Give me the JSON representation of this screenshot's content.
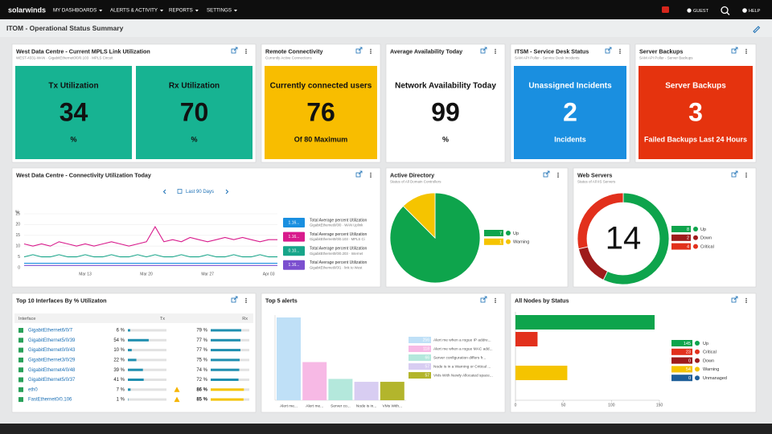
{
  "nav": {
    "logo": "solarwinds",
    "menus": [
      "MY DASHBOARDS",
      "ALERTS & ACTIVITY",
      "REPORTS",
      "SETTINGS"
    ],
    "user": "GUEST",
    "help": "HELP"
  },
  "page_title": "ITOM - Operational Status Summary",
  "stat_widgets": [
    {
      "title": "West Data Centre - Current MPLS Link Utilization",
      "subtitle": "WEST-4331-WAN · GigabitEthernet0/0/0.103 · MPLS Circuit",
      "tiles": [
        {
          "label": "Tx Utilization",
          "value": 34,
          "footer": "%",
          "color": "#17b392",
          "text_color": "#111111"
        },
        {
          "label": "Rx Utilization",
          "value": 70,
          "footer": "%",
          "color": "#17b392",
          "text_color": "#111111"
        }
      ]
    },
    {
      "title": "Remote Connectivity",
      "subtitle": "Currently Active Connections",
      "tiles": [
        {
          "label": "Currently connected users",
          "value": 76,
          "footer": "Of 80 Maximum",
          "color": "#f8bd00",
          "text_color": "#111111"
        }
      ]
    },
    {
      "title": "Average Availability Today",
      "tiles": [
        {
          "label": "Network Availability Today",
          "value": 99,
          "footer": "%",
          "color": "#ffffff",
          "text_color": "#111111"
        }
      ]
    },
    {
      "title": "ITSM - Service Desk Status",
      "subtitle": "SAM API Poller - Service Desk Incidents",
      "tiles": [
        {
          "label": "Unassigned Incidents",
          "value": 2,
          "footer": "Incidents",
          "color": "#1a8fe0",
          "text_color": "#ffffff"
        }
      ]
    },
    {
      "title": "Server Backups",
      "subtitle": "SAM API Poller - Server Backups",
      "tiles": [
        {
          "label": "Server Backups",
          "value": 3,
          "footer": "Failed Backups Last 24 Hours",
          "color": "#e5330e",
          "text_color": "#ffffff"
        }
      ]
    }
  ],
  "utilization_chart": {
    "type": "line",
    "title": "West Data Centre - Connectivity Utilization Today",
    "range_label": "Last 90 Days",
    "y_label": "%",
    "categories": [
      null,
      null,
      null,
      null,
      null,
      null,
      null,
      "Mar 13",
      null,
      null,
      null,
      null,
      null,
      null,
      "Mar 20",
      null,
      null,
      null,
      null,
      null,
      null,
      "Mar 27",
      null,
      null,
      null,
      null,
      null,
      null,
      "Apr 03",
      null
    ],
    "ylim": [
      0,
      25
    ],
    "yticks": [
      0,
      5,
      10,
      15,
      20,
      25
    ],
    "grid": true,
    "series": [
      {
        "name": "Total Average percent Utilization",
        "detail": "GigabitEthernet0/0/0 · WAN Uplink",
        "badge": "1.16...",
        "color": "#1a8fe0",
        "values": [
          2,
          2,
          2,
          2,
          2,
          2,
          2,
          2,
          2,
          2,
          2,
          2,
          2,
          2,
          2,
          2,
          2,
          2,
          2,
          2,
          2,
          2,
          2,
          2,
          2,
          2,
          2,
          2,
          2,
          2
        ]
      },
      {
        "name": "Total Average percent Utilization",
        "detail": "GigabitEthernet0/0/0.103 · MPLS Ci",
        "badge": "1.16...",
        "color": "#d81b8c",
        "values": [
          11,
          10,
          11,
          10,
          12,
          11,
          10,
          11,
          10,
          11,
          12,
          11,
          10,
          11,
          12,
          19,
          12,
          13,
          12,
          14,
          13,
          12,
          13,
          14,
          13,
          14,
          13,
          12,
          13,
          13
        ]
      },
      {
        "name": "Total Average percent Utilization",
        "detail": "GigabitEthernet0/0/0.203 · Internet",
        "badge": "0.10...",
        "color": "#17a589",
        "values": [
          5,
          6,
          5,
          5,
          6,
          5,
          5,
          6,
          5,
          5,
          6,
          5,
          5,
          6,
          5,
          6,
          5,
          5,
          6,
          5,
          5,
          6,
          5,
          5,
          6,
          5,
          5,
          6,
          5,
          5
        ]
      },
      {
        "name": "Total Average percent Utilization",
        "detail": "GigabitEthernet0/0/1 · link to West",
        "badge": "1.16...",
        "color": "#7b4fcf",
        "values": [
          1,
          1,
          1,
          1,
          1,
          1,
          1,
          1,
          1,
          1,
          1,
          1,
          1,
          1,
          1,
          1,
          1,
          1,
          1,
          1,
          1,
          1,
          1,
          1,
          1,
          1,
          1,
          1,
          1,
          1
        ]
      }
    ]
  },
  "active_directory": {
    "type": "pie",
    "title": "Active Directory",
    "subtitle": "Status of All Domain Controllers",
    "slices": [
      {
        "name": "Up",
        "value": 7,
        "color": "#0ea44c"
      },
      {
        "name": "Warning",
        "value": 1,
        "color": "#f5c400"
      }
    ]
  },
  "web_servers": {
    "type": "donut",
    "title": "Web Servers",
    "subtitle": "Status of All IIS Servers",
    "center_value": 14,
    "slices": [
      {
        "name": "Up",
        "value": 8,
        "color": "#0ea44c"
      },
      {
        "name": "Down",
        "value": 2,
        "color": "#9e1b1b"
      },
      {
        "name": "Critical",
        "value": 4,
        "color": "#e2301c"
      }
    ]
  },
  "interfaces_table": {
    "title": "Top 10 Interfaces By % Utilizaton",
    "columns": [
      "Interface",
      "Tx",
      "Rx"
    ],
    "rows": [
      {
        "interface": "GigabitEthernet6/0/7",
        "tx": {
          "value": 6,
          "label": "6 %"
        },
        "rx": {
          "value": 79,
          "label": "79 %"
        }
      },
      {
        "interface": "GigabitEthernet5/0/39",
        "tx": {
          "value": 54,
          "label": "54 %"
        },
        "rx": {
          "value": 77,
          "label": "77 %"
        }
      },
      {
        "interface": "GigabitEthernet0/0/43",
        "tx": {
          "value": 10,
          "label": "10 %"
        },
        "rx": {
          "value": 77,
          "label": "77 %"
        }
      },
      {
        "interface": "GigabitEthernet3/0/29",
        "tx": {
          "value": 22,
          "label": "22 %"
        },
        "rx": {
          "value": 75,
          "label": "75 %"
        }
      },
      {
        "interface": "GigabitEthernet4/0/48",
        "tx": {
          "value": 39,
          "label": "39 %"
        },
        "rx": {
          "value": 74,
          "label": "74 %"
        }
      },
      {
        "interface": "GigabitEthernet5/0/37",
        "tx": {
          "value": 41,
          "label": "41 %"
        },
        "rx": {
          "value": 72,
          "label": "72 %"
        }
      },
      {
        "interface": "eth0",
        "tx": {
          "value": 7,
          "label": "7 %"
        },
        "rx": {
          "value": 86,
          "label": "86 %"
        },
        "status": "warning"
      },
      {
        "interface": "FastEthernet0/0.106",
        "tx": {
          "value": 1,
          "label": "1 %"
        },
        "rx": {
          "value": 85,
          "label": "85 %"
        },
        "status": "warning"
      }
    ]
  },
  "top_alerts": {
    "type": "bar",
    "title": "Top 5 alerts",
    "categories": [
      "Alert me...",
      "Alert me...",
      "Server co...",
      "Node is in...",
      "VMs With..."
    ],
    "legend": [
      "Alert me when a rogue IP addre...",
      "Alert me when a rogue MAC add...",
      "Server configuration differs fr...",
      "Node is in a Warning or Critical ...",
      "VMs With Newly Allocated space..."
    ],
    "values": [
      256,
      118,
      66,
      57,
      57
    ],
    "colors": [
      "#bfe0f7",
      "#f7b9e5",
      "#b4e8dc",
      "#d8cdf2",
      "#b3b52c"
    ]
  },
  "nodes_status": {
    "type": "bar",
    "orientation": "horizontal",
    "title": "All Nodes by Status",
    "categories": [
      "Up",
      "Critical",
      "Down",
      "Warning",
      "Unmanaged"
    ],
    "values": [
      145,
      23,
      0,
      54,
      0
    ],
    "colors": [
      "#0ea44c",
      "#e2301c",
      "#9e1b1b",
      "#f5c400",
      "#1f5f99"
    ],
    "xlim": [
      0,
      150
    ],
    "xticks": [
      0,
      50,
      100,
      150
    ]
  }
}
